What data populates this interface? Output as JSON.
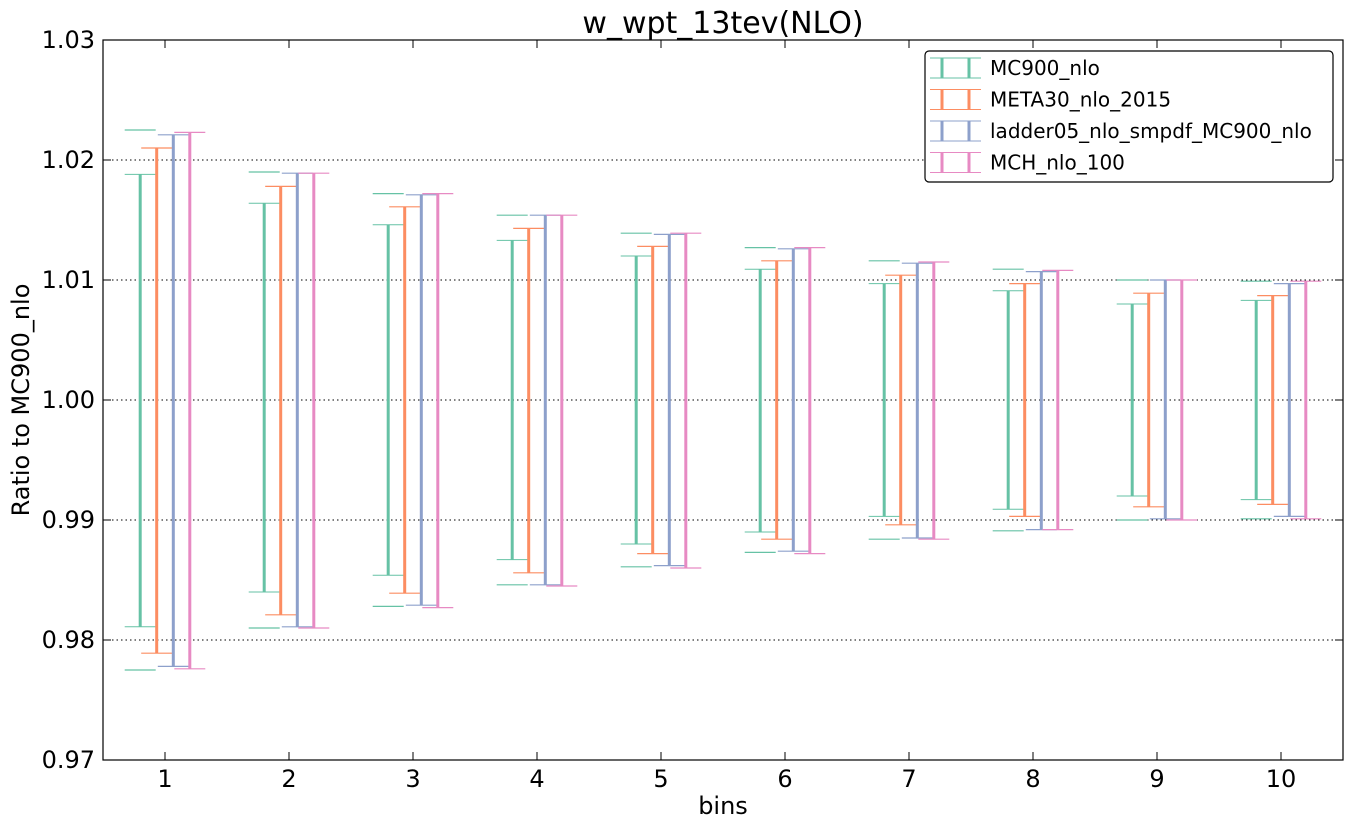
{
  "chart_data": {
    "type": "errorbar",
    "title": "w_wpt_13tev(NLO)",
    "xlabel": "bins",
    "ylabel": "Ratio to MC900_nlo",
    "ylim": [
      0.97,
      1.03
    ],
    "xlim": [
      0.5,
      10.5
    ],
    "y_ticks": [
      "0.97",
      "0.98",
      "0.99",
      "1.00",
      "1.01",
      "1.02",
      "1.03"
    ],
    "x_ticks": [
      "1",
      "2",
      "3",
      "4",
      "5",
      "6",
      "7",
      "8",
      "9",
      "10"
    ],
    "grid": "horizontal dotted",
    "legend_position": "top-right",
    "categories": [
      1,
      2,
      3,
      4,
      5,
      6,
      7,
      8,
      9,
      10
    ],
    "series": [
      {
        "name": "MC900_nlo",
        "color": "#66c2a5",
        "outer_low": [
          0.9775,
          0.981,
          0.9828,
          0.9846,
          0.9861,
          0.9873,
          0.9884,
          0.9891,
          0.99,
          0.9901
        ],
        "outer_high": [
          1.0225,
          1.019,
          1.0172,
          1.0154,
          1.0139,
          1.0127,
          1.0116,
          1.0109,
          1.01,
          1.0099
        ],
        "inner_low": [
          0.9811,
          0.984,
          0.9854,
          0.9867,
          0.988,
          0.989,
          0.9903,
          0.9909,
          0.992,
          0.9917
        ],
        "inner_high": [
          1.0188,
          1.0164,
          1.0146,
          1.0133,
          1.012,
          1.0109,
          1.0097,
          1.0091,
          1.008,
          1.0083
        ]
      },
      {
        "name": "META30_nlo_2015",
        "color": "#fc8d62",
        "outer_low": [
          0.9789,
          0.9821,
          0.9839,
          0.9856,
          0.9872,
          0.9884,
          0.9896,
          0.9903,
          0.9911,
          0.9913
        ],
        "outer_high": [
          1.021,
          1.0178,
          1.0161,
          1.0143,
          1.0128,
          1.0116,
          1.0104,
          1.0097,
          1.0089,
          1.0087
        ],
        "inner_low": [
          0.9789,
          0.9821,
          0.9839,
          0.9856,
          0.9872,
          0.9884,
          0.9896,
          0.9903,
          0.9911,
          0.9913
        ],
        "inner_high": [
          1.021,
          1.0178,
          1.0161,
          1.0143,
          1.0128,
          1.0116,
          1.0104,
          1.0097,
          1.0089,
          1.0087
        ]
      },
      {
        "name": "ladder05_nlo_smpdf_MC900_nlo",
        "color": "#8da0cb",
        "outer_low": [
          0.9778,
          0.9811,
          0.9829,
          0.9846,
          0.9862,
          0.9874,
          0.9885,
          0.9892,
          0.9901,
          0.9903
        ],
        "outer_high": [
          1.0221,
          1.0189,
          1.0171,
          1.0154,
          1.0138,
          1.0126,
          1.0114,
          1.0107,
          1.01,
          1.0097
        ],
        "inner_low": [
          0.9778,
          0.9811,
          0.9829,
          0.9846,
          0.9862,
          0.9874,
          0.9885,
          0.9892,
          0.9901,
          0.9903
        ],
        "inner_high": [
          1.0221,
          1.0189,
          1.0171,
          1.0154,
          1.0138,
          1.0126,
          1.0114,
          1.0107,
          1.01,
          1.0097
        ]
      },
      {
        "name": "MCH_nlo_100",
        "color": "#e78ac3",
        "outer_low": [
          0.9776,
          0.981,
          0.9827,
          0.9845,
          0.986,
          0.9872,
          0.9884,
          0.9892,
          0.99,
          0.9901
        ],
        "outer_high": [
          1.0223,
          1.0189,
          1.0172,
          1.0154,
          1.0139,
          1.0127,
          1.0115,
          1.0108,
          1.01,
          1.0099
        ],
        "inner_low": [
          0.9776,
          0.981,
          0.9827,
          0.9845,
          0.986,
          0.9872,
          0.9884,
          0.9892,
          0.99,
          0.9901
        ],
        "inner_high": [
          1.0223,
          1.0189,
          1.0172,
          1.0154,
          1.0139,
          1.0127,
          1.0115,
          1.0108,
          1.01,
          1.0099
        ]
      }
    ]
  }
}
